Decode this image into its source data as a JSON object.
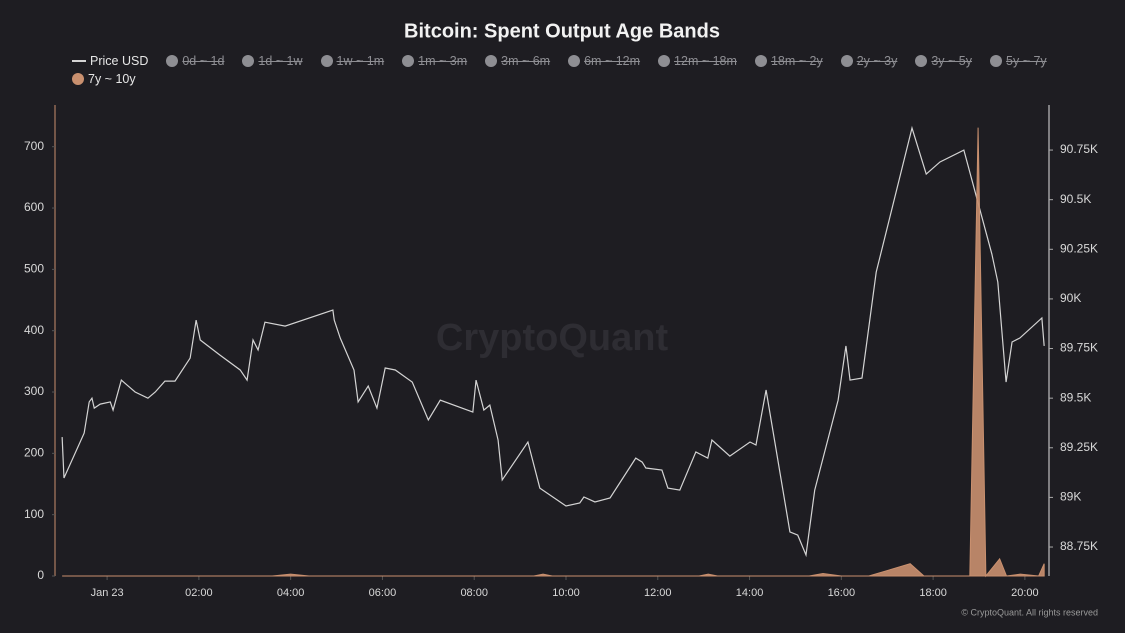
{
  "chart_data": {
    "type": "line",
    "title": "Bitcoin: Spent Output Age Bands",
    "watermark": "CryptoQuant",
    "footer": "© CryptoQuant. All rights reserved",
    "hidden_series": [
      "0d ~ 1d",
      "1d ~ 1w",
      "1w ~ 1m",
      "1m ~ 3m",
      "3m ~ 6m",
      "6m ~ 12m",
      "12m ~ 18m",
      "18m ~ 2y",
      "2y ~ 3y",
      "3y ~ 5y",
      "5y ~ 7y"
    ],
    "hidden_color": "#8e8e93",
    "series": [
      {
        "name": "Price USD",
        "color": "#d4d4d4",
        "axis": "y2",
        "type": "line",
        "x": [
          -0.98,
          -0.94,
          -0.5,
          -0.39,
          -0.33,
          -0.28,
          -0.15,
          0.07,
          0.13,
          0.31,
          0.61,
          0.89,
          1.05,
          1.26,
          1.48,
          1.81,
          1.94,
          2.03,
          2.46,
          2.9,
          3.05,
          3.18,
          3.29,
          3.44,
          3.88,
          4.92,
          4.95,
          5.08,
          5.38,
          5.47,
          5.69,
          5.88,
          6.06,
          6.28,
          6.65,
          7.0,
          7.26,
          7.97,
          8.04,
          8.21,
          8.34,
          8.52,
          8.61,
          9.17,
          9.43,
          10.0,
          10.3,
          10.39,
          10.63,
          10.96,
          11.52,
          11.66,
          11.74,
          12.09,
          12.22,
          12.48,
          12.83,
          13.09,
          13.18,
          13.57,
          14.01,
          14.14,
          14.36,
          14.88,
          15.05,
          15.23,
          15.42,
          15.93,
          16.1,
          16.19,
          16.45,
          16.76,
          17.54,
          17.85,
          18.15,
          18.67,
          19.28,
          19.41,
          19.59,
          19.72,
          19.89,
          20.37,
          20.42
        ],
        "values": [
          89304,
          89098,
          89324,
          89481,
          89500,
          89450,
          89470,
          89481,
          89440,
          89591,
          89531,
          89500,
          89531,
          89586,
          89586,
          89702,
          89893,
          89793,
          89717,
          89642,
          89591,
          89793,
          89743,
          89883,
          89863,
          89944,
          89893,
          89803,
          89642,
          89481,
          89561,
          89450,
          89652,
          89642,
          89581,
          89390,
          89490,
          89430,
          89591,
          89440,
          89465,
          89289,
          89088,
          89279,
          89047,
          88957,
          88972,
          89002,
          88977,
          88997,
          89198,
          89178,
          89148,
          89138,
          89047,
          89037,
          89229,
          89198,
          89289,
          89208,
          89279,
          89264,
          89541,
          88826,
          88810,
          88710,
          89037,
          89490,
          89763,
          89591,
          89601,
          90135,
          90861,
          90629,
          90690,
          90750,
          90226,
          90085,
          89581,
          89783,
          89803,
          89904,
          89763
        ]
      },
      {
        "name": "7y ~ 10y",
        "color": "#c9906f",
        "type": "area",
        "x": [
          -0.98,
          3.6,
          4.0,
          4.4,
          9.3,
          9.5,
          9.7,
          12.9,
          13.1,
          13.3,
          15.3,
          15.6,
          16.0,
          16.6,
          17.5,
          17.8,
          18.8,
          18.98,
          19.15,
          19.45,
          19.6,
          19.9,
          20.3,
          20.42
        ],
        "values": [
          0,
          0,
          3,
          0,
          0,
          3,
          0,
          0,
          3,
          0,
          0,
          4,
          0,
          0,
          20,
          0,
          0,
          731,
          0,
          28,
          0,
          3,
          0,
          20
        ]
      }
    ],
    "xlim": [
      -1.07,
      20.46
    ],
    "xticks": [
      {
        "value": 0,
        "label": "Jan 23"
      },
      {
        "value": 2,
        "label": "02:00"
      },
      {
        "value": 4,
        "label": "04:00"
      },
      {
        "value": 6,
        "label": "06:00"
      },
      {
        "value": 8,
        "label": "08:00"
      },
      {
        "value": 10,
        "label": "10:00"
      },
      {
        "value": 12,
        "label": "12:00"
      },
      {
        "value": 14,
        "label": "14:00"
      },
      {
        "value": 16,
        "label": "16:00"
      },
      {
        "value": 18,
        "label": "18:00"
      },
      {
        "value": 20,
        "label": "20:00"
      }
    ],
    "ylim": [
      0,
      768
    ],
    "yticks": [
      0,
      100,
      200,
      300,
      400,
      500,
      600,
      700
    ],
    "y2lim": [
      88604,
      90977
    ],
    "y2ticks": [
      {
        "value": 88750,
        "label": "88.75K"
      },
      {
        "value": 89000,
        "label": "89K"
      },
      {
        "value": 89250,
        "label": "89.25K"
      },
      {
        "value": 89500,
        "label": "89.5K"
      },
      {
        "value": 89750,
        "label": "89.75K"
      },
      {
        "value": 90000,
        "label": "90K"
      },
      {
        "value": 90250,
        "label": "90.25K"
      },
      {
        "value": 90500,
        "label": "90.5K"
      },
      {
        "value": 90750,
        "label": "90.75K"
      }
    ]
  }
}
